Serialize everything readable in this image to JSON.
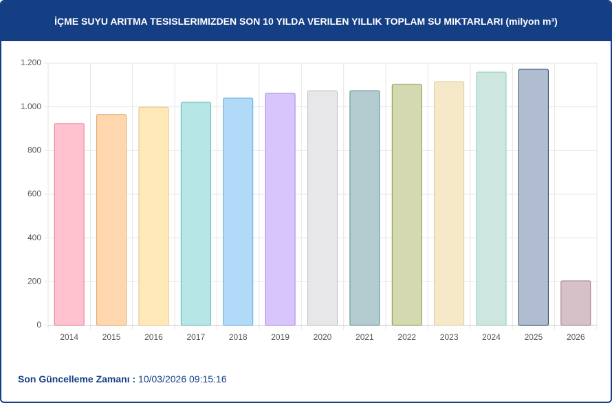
{
  "chart_data": {
    "type": "bar",
    "title": "İÇME SUYU ARITMA TESISLERIMIZDEN SON 10 YILDA VERILEN YILLIK TOPLAM SU MIKTARLARI (milyon m³)",
    "categories": [
      "2014",
      "2015",
      "2016",
      "2017",
      "2018",
      "2019",
      "2020",
      "2021",
      "2022",
      "2023",
      "2024",
      "2025",
      "2026"
    ],
    "values": [
      924,
      965,
      999,
      1021,
      1040,
      1062,
      1074,
      1074,
      1103,
      1115,
      1159,
      1172,
      204
    ],
    "colors": [
      "#ffc1cd",
      "#ffd7ae",
      "#ffe9b8",
      "#b6e6e5",
      "#b1d9f8",
      "#d7c5fc",
      "#e7e7e9",
      "#b4cbcf",
      "#d5d9b1",
      "#f6e9c9",
      "#cde7e0",
      "#b0bdd1",
      "#d7c1c8"
    ],
    "border_colors": [
      "#e07b92",
      "#e0a160",
      "#e0c274",
      "#5cb8b6",
      "#62a8e0",
      "#a283e0",
      "#c0c0c5",
      "#5a8a91",
      "#8a9042",
      "#e0c990",
      "#90c8b8",
      "#1f3a60",
      "#a07a84"
    ],
    "ylim": [
      0,
      1200
    ],
    "yticks": [
      0,
      200,
      400,
      600,
      800,
      {
        "value": 1000,
        "label": "1.000"
      },
      {
        "value": 1200,
        "label": "1.200"
      }
    ],
    "grid": true
  },
  "footer": {
    "label": "Son Güncelleme Zamanı :",
    "value": "10/03/2026 09:15:16"
  }
}
